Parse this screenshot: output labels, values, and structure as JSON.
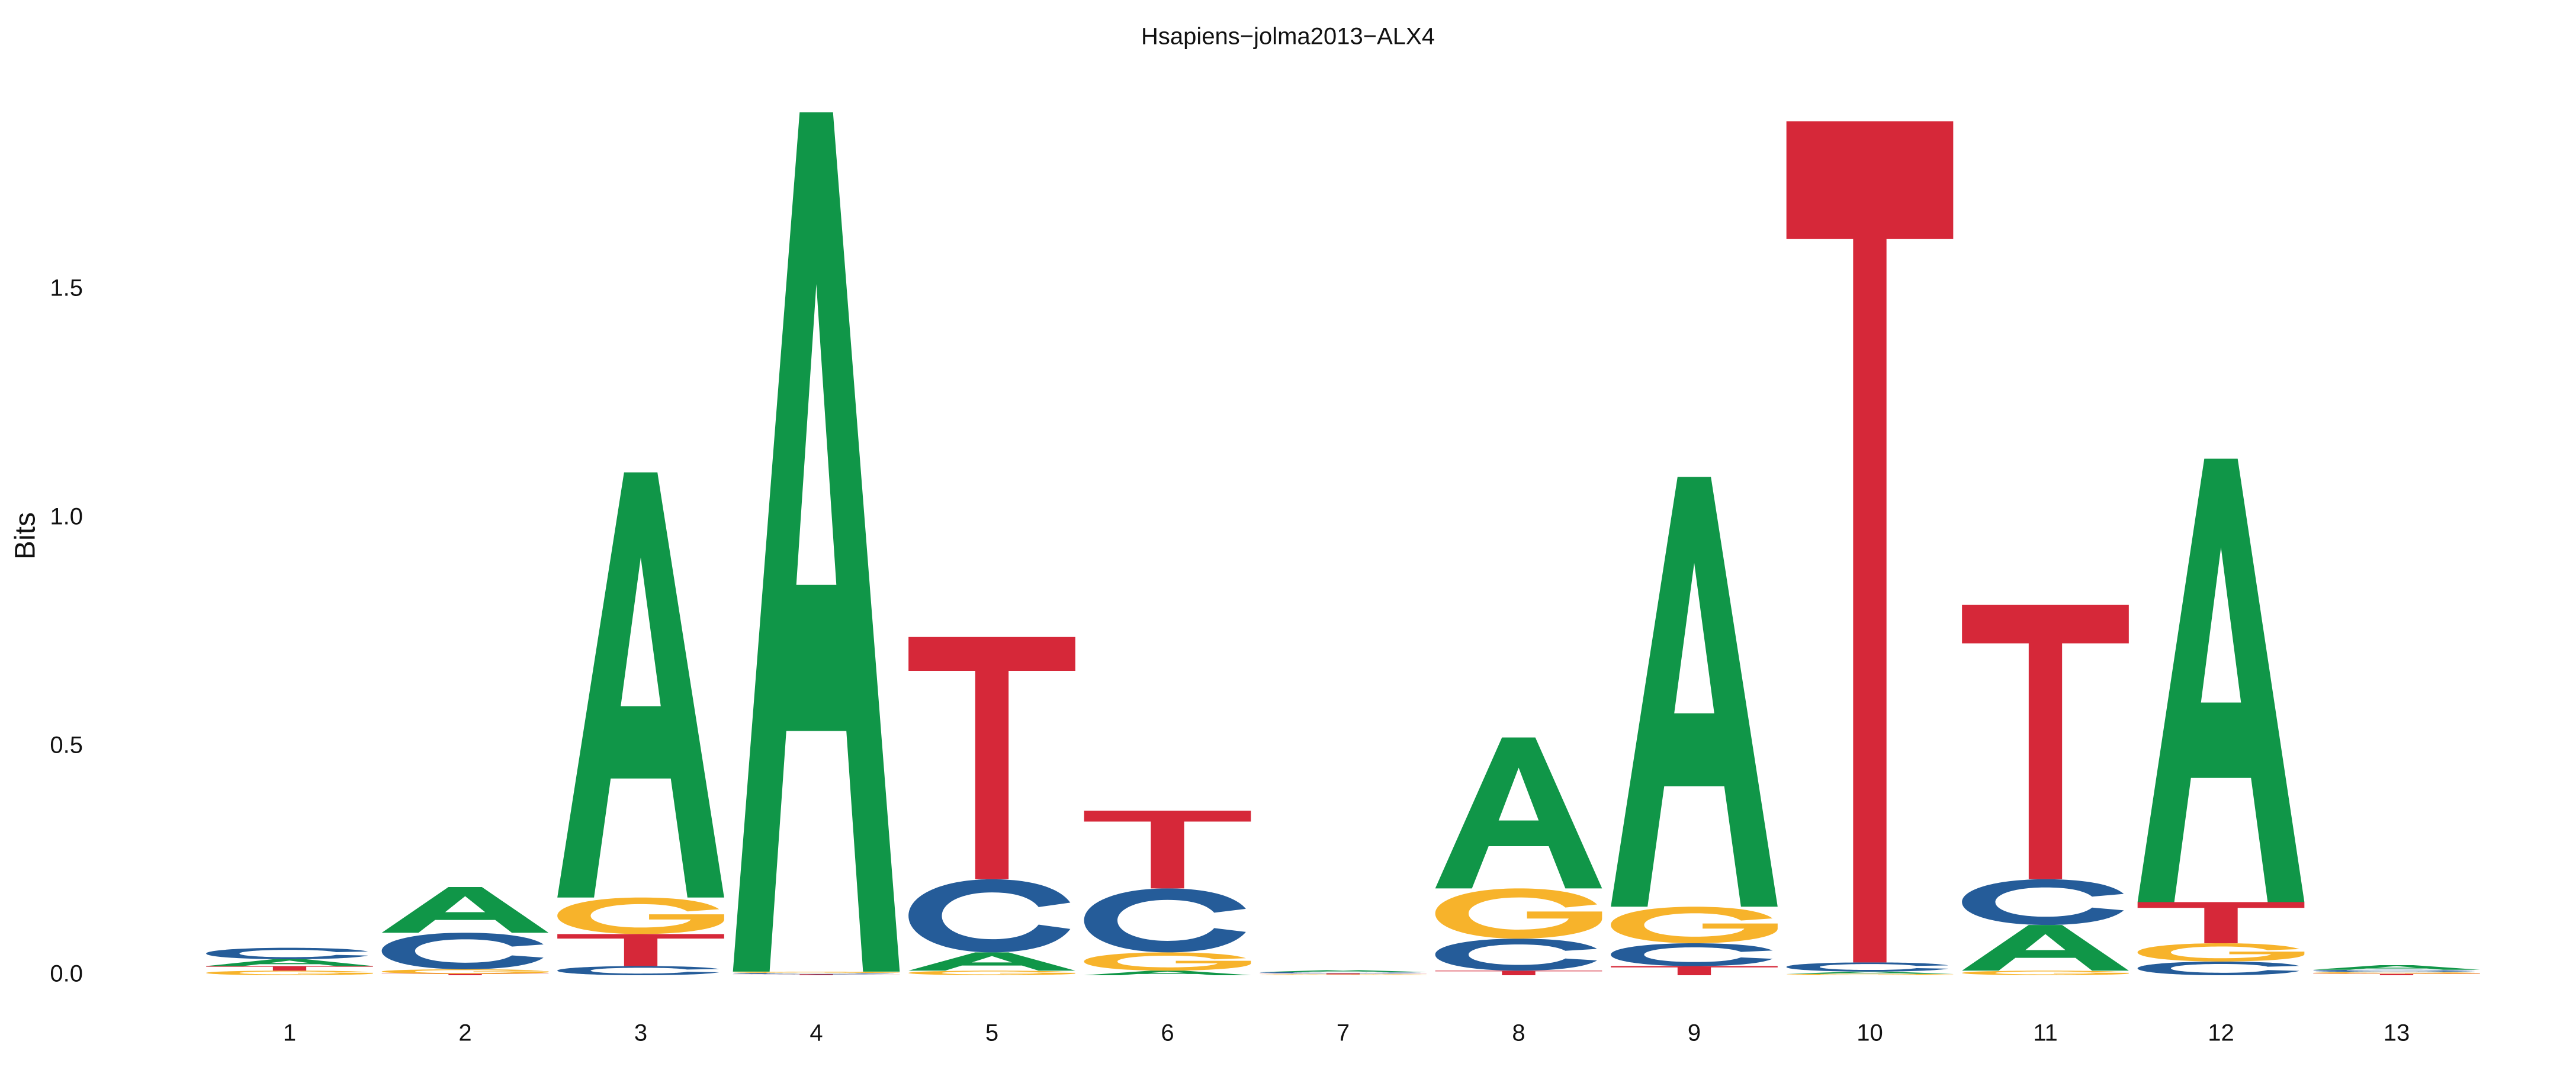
{
  "chart_data": {
    "type": "logo",
    "title": "Hsapiens−jolma2013−ALX4",
    "ylabel": "Bits",
    "categories": [
      "1",
      "2",
      "3",
      "4",
      "5",
      "6",
      "7",
      "8",
      "9",
      "10",
      "11",
      "12",
      "13"
    ],
    "series": [
      {
        "name": "A",
        "color": "#109648",
        "values": [
          0.015,
          0.1,
          0.93,
          1.88,
          0.04,
          0.01,
          0.004,
          0.33,
          0.94,
          0.005,
          0.1,
          0.97,
          0.01
        ]
      },
      {
        "name": "C",
        "color": "#255C99",
        "values": [
          0.025,
          0.08,
          0.02,
          0.003,
          0.16,
          0.14,
          0.003,
          0.07,
          0.05,
          0.02,
          0.1,
          0.03,
          0.005
        ]
      },
      {
        "name": "G",
        "color": "#F7B32B",
        "values": [
          0.01,
          0.01,
          0.08,
          0.003,
          0.01,
          0.04,
          0.002,
          0.11,
          0.08,
          0.003,
          0.01,
          0.04,
          0.004
        ]
      },
      {
        "name": "T",
        "color": "#D62839",
        "values": [
          0.01,
          0.003,
          0.07,
          0.002,
          0.53,
          0.17,
          0.002,
          0.01,
          0.02,
          1.84,
          0.6,
          0.09,
          0.003
        ]
      }
    ],
    "ylim": [
      0,
      2
    ],
    "yticks": [
      {
        "value": 0,
        "label": "0.0"
      },
      {
        "value": 0.5,
        "label": "0.5"
      },
      {
        "value": 1,
        "label": "1.0"
      },
      {
        "value": 1.5,
        "label": "1.5"
      }
    ]
  }
}
